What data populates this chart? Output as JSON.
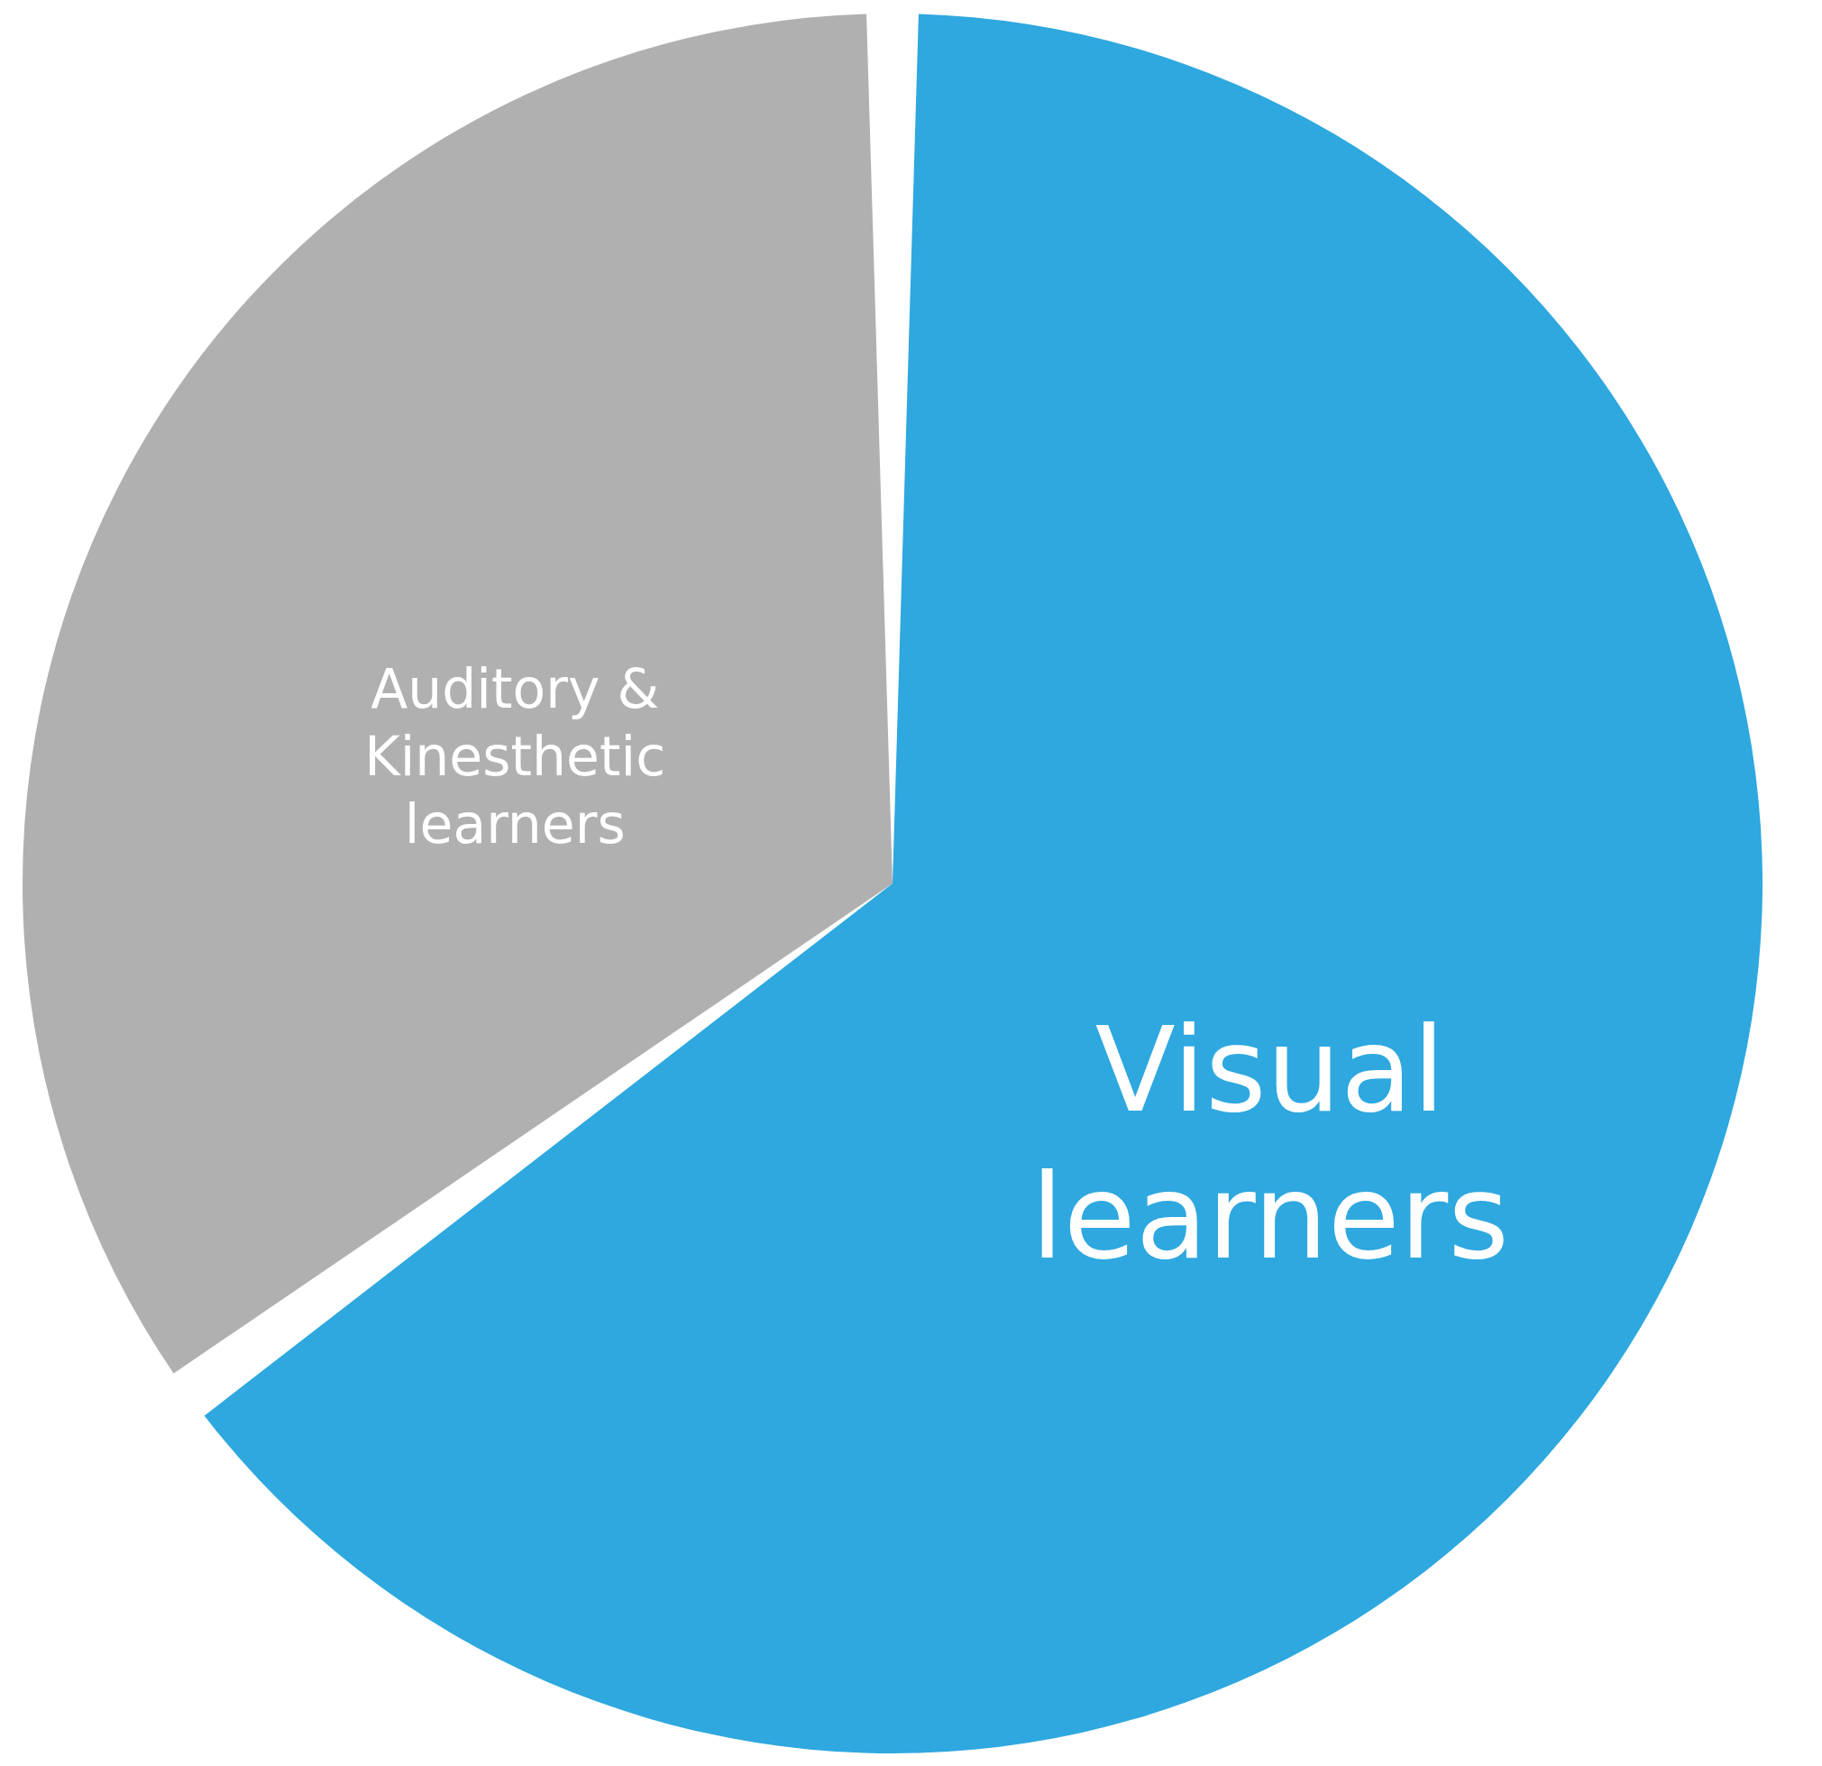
{
  "chart_data": {
    "type": "pie",
    "categories": [
      "Visual learners",
      "Auditory & Kinesthetic learners"
    ],
    "values": [
      65,
      35
    ],
    "colors": [
      "#2ea8df",
      "#b1b0b1"
    ],
    "legend": false
  }
}
